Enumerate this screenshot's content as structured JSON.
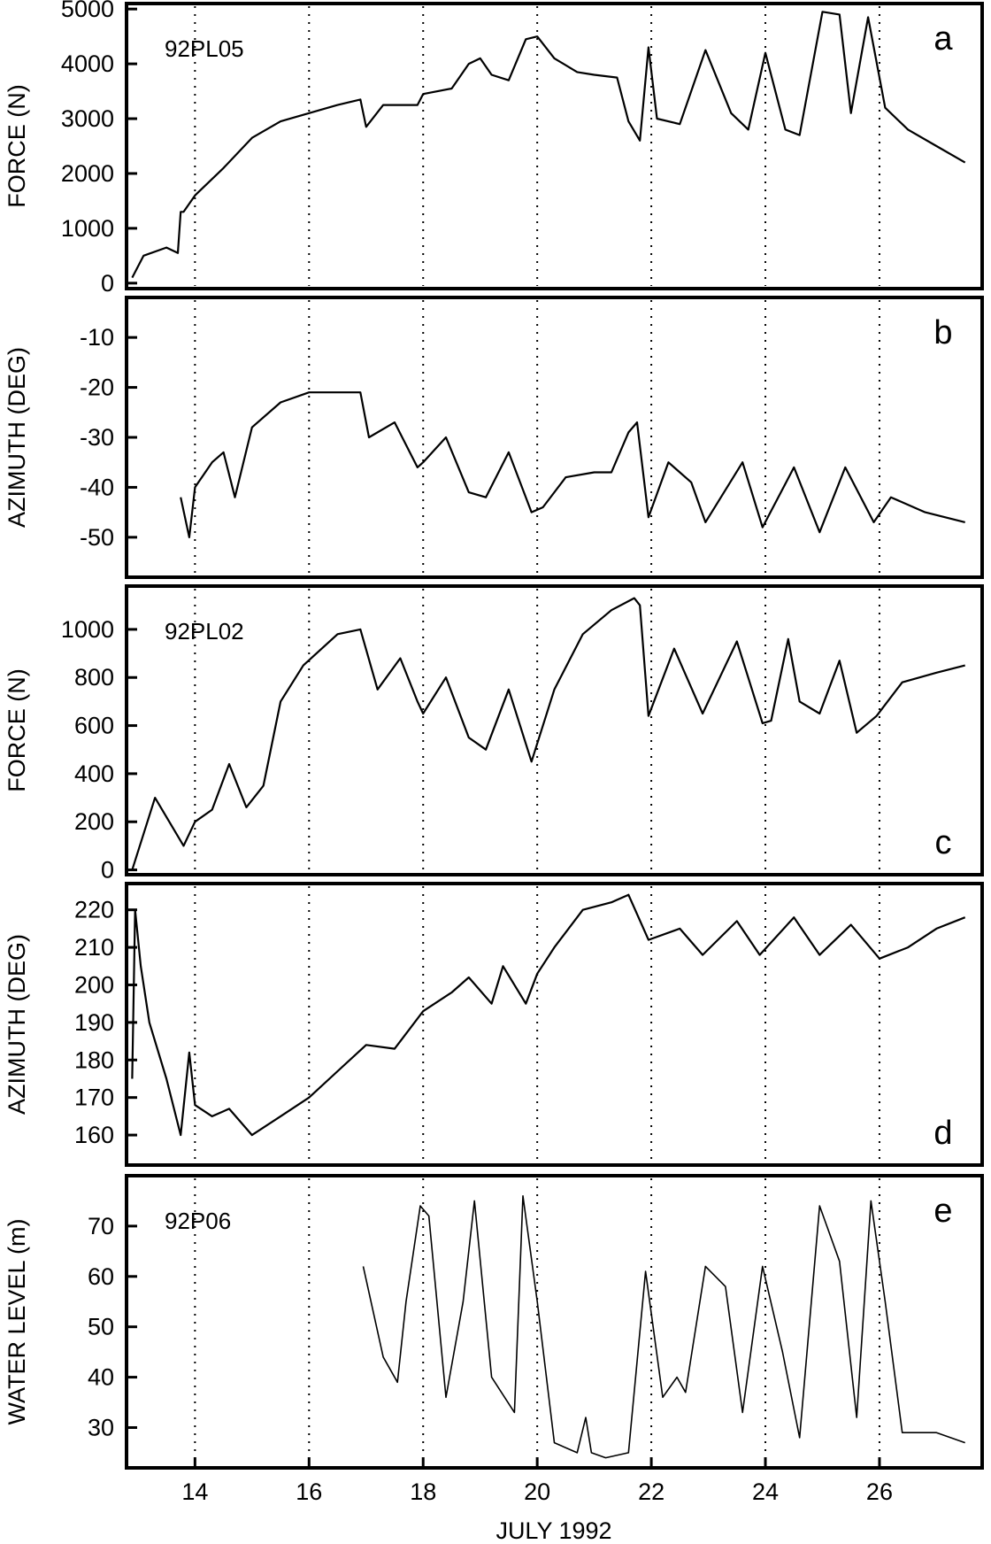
{
  "figure": {
    "xlabel": "JULY 1992",
    "x_ticks": [
      14,
      16,
      18,
      20,
      22,
      24,
      26
    ],
    "xlim": [
      12.8,
      27.8
    ],
    "grid": "vertical dotted lines at every tick"
  },
  "chart_data": [
    {
      "type": "line",
      "panel": "a",
      "label": "92PL05",
      "ylabel": "FORCE (N)",
      "ylim": [
        -100,
        5100
      ],
      "y_ticks": [
        0,
        1000,
        2000,
        3000,
        4000,
        5000
      ],
      "x": [
        12.9,
        13.1,
        13.5,
        13.7,
        13.75,
        13.8,
        14.0,
        14.5,
        15.0,
        15.5,
        16.0,
        16.5,
        16.9,
        17.0,
        17.3,
        17.9,
        18.0,
        18.5,
        18.8,
        19.0,
        19.2,
        19.5,
        19.8,
        20.0,
        20.3,
        20.7,
        21.0,
        21.4,
        21.6,
        21.8,
        21.95,
        22.1,
        22.5,
        22.95,
        23.4,
        23.7,
        24.0,
        24.35,
        24.6,
        25.0,
        25.3,
        25.5,
        25.8,
        26.1,
        26.5,
        27.0,
        27.5
      ],
      "y": [
        100,
        500,
        650,
        550,
        1300,
        1300,
        1600,
        2100,
        2650,
        2950,
        3100,
        3250,
        3350,
        2850,
        3250,
        3250,
        3450,
        3550,
        4000,
        4100,
        3800,
        3700,
        4450,
        4500,
        4100,
        3850,
        3800,
        3750,
        2950,
        2600,
        4300,
        3000,
        2900,
        4250,
        3100,
        2800,
        4200,
        2800,
        2700,
        4950,
        4900,
        3100,
        4850,
        3200,
        2800,
        2500,
        2200
      ]
    },
    {
      "type": "line",
      "panel": "b",
      "ylabel": "AZIMUTH (DEG)",
      "ylim": [
        -58,
        -2
      ],
      "y_ticks": [
        -10,
        -20,
        -30,
        -40,
        -50
      ],
      "x": [
        13.75,
        13.9,
        14.0,
        14.3,
        14.5,
        14.7,
        15.0,
        15.5,
        16.0,
        16.5,
        16.9,
        17.05,
        17.5,
        17.9,
        18.0,
        18.4,
        18.8,
        19.1,
        19.5,
        19.9,
        20.1,
        20.5,
        21.0,
        21.3,
        21.6,
        21.75,
        21.95,
        22.3,
        22.7,
        22.95,
        23.6,
        23.95,
        24.5,
        24.95,
        25.4,
        25.9,
        26.2,
        26.8,
        27.5
      ],
      "y": [
        -42,
        -50,
        -40,
        -35,
        -33,
        -42,
        -28,
        -23,
        -21,
        -21,
        -21,
        -30,
        -27,
        -36,
        -35,
        -30,
        -41,
        -42,
        -33,
        -45,
        -44,
        -38,
        -37,
        -37,
        -29,
        -27,
        -46,
        -35,
        -39,
        -47,
        -35,
        -48,
        -36,
        -49,
        -36,
        -47,
        -42,
        -45,
        -47
      ]
    },
    {
      "type": "line",
      "panel": "c",
      "label": "92PL02",
      "ylabel": "FORCE (N)",
      "ylim": [
        -20,
        1180
      ],
      "y_ticks": [
        0,
        200,
        400,
        600,
        800,
        1000
      ],
      "x": [
        12.9,
        13.3,
        13.8,
        14.0,
        14.3,
        14.6,
        14.9,
        15.2,
        15.5,
        15.9,
        16.5,
        16.9,
        17.2,
        17.6,
        17.9,
        18.0,
        18.4,
        18.8,
        19.1,
        19.5,
        19.9,
        20.3,
        20.8,
        21.3,
        21.7,
        21.8,
        21.95,
        22.4,
        22.9,
        23.5,
        23.95,
        24.1,
        24.4,
        24.6,
        24.95,
        25.3,
        25.6,
        25.95,
        26.4,
        27.0,
        27.5
      ],
      "y": [
        0,
        300,
        100,
        200,
        250,
        440,
        260,
        350,
        700,
        850,
        980,
        1000,
        750,
        880,
        700,
        650,
        800,
        550,
        500,
        750,
        450,
        750,
        980,
        1080,
        1130,
        1100,
        640,
        920,
        650,
        950,
        610,
        620,
        960,
        700,
        650,
        870,
        570,
        640,
        780,
        820,
        850
      ]
    },
    {
      "type": "line",
      "panel": "d",
      "ylabel": "AZIMUTH (DEG)",
      "ylim": [
        152,
        227
      ],
      "y_ticks": [
        160,
        170,
        180,
        190,
        200,
        210,
        220
      ],
      "x": [
        12.9,
        12.95,
        13.05,
        13.2,
        13.5,
        13.75,
        13.9,
        14.0,
        14.3,
        14.6,
        15.0,
        15.5,
        16.0,
        16.5,
        17.0,
        17.5,
        18.0,
        18.5,
        18.8,
        19.2,
        19.4,
        19.8,
        20.0,
        20.3,
        20.8,
        21.3,
        21.6,
        21.95,
        22.5,
        22.9,
        23.5,
        23.9,
        24.5,
        24.95,
        25.5,
        26.0,
        26.5,
        27.0,
        27.5
      ],
      "y": [
        175,
        220,
        205,
        190,
        175,
        160,
        182,
        168,
        165,
        167,
        160,
        165,
        170,
        177,
        184,
        183,
        193,
        198,
        202,
        195,
        205,
        195,
        203,
        210,
        220,
        222,
        224,
        212,
        215,
        208,
        217,
        208,
        218,
        208,
        216,
        207,
        210,
        215,
        218
      ]
    },
    {
      "type": "line",
      "panel": "e",
      "label": "92P06",
      "ylabel": "WATER LEVEL (m)",
      "ylim": [
        22,
        80
      ],
      "y_ticks": [
        30,
        40,
        50,
        60,
        70
      ],
      "x": [
        16.95,
        17.3,
        17.55,
        17.7,
        17.95,
        18.1,
        18.4,
        18.7,
        18.9,
        19.2,
        19.6,
        19.75,
        20.0,
        20.3,
        20.7,
        20.85,
        20.95,
        21.2,
        21.6,
        21.9,
        22.2,
        22.45,
        22.6,
        22.95,
        23.3,
        23.6,
        23.95,
        24.3,
        24.6,
        24.95,
        25.3,
        25.6,
        25.85,
        26.1,
        26.4,
        27.0,
        27.5
      ],
      "y": [
        62,
        44,
        39,
        55,
        74,
        72,
        36,
        55,
        75,
        40,
        33,
        76,
        55,
        27,
        25,
        32,
        25,
        24,
        25,
        61,
        36,
        40,
        37,
        62,
        58,
        33,
        62,
        45,
        28,
        74,
        63,
        32,
        75,
        55,
        29,
        29,
        27
      ]
    }
  ]
}
